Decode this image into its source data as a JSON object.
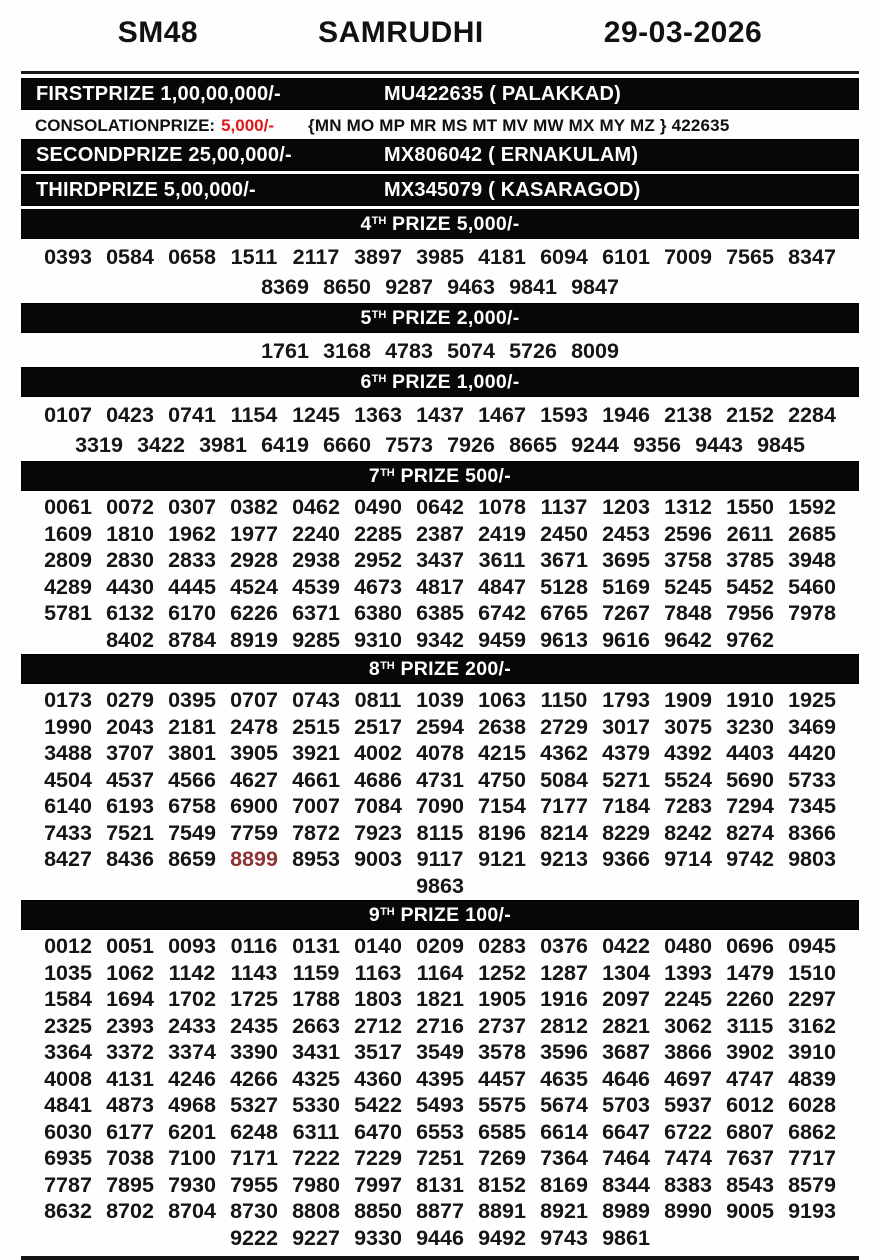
{
  "header": {
    "draw_code": "SM48",
    "lottery_name": "SAMRUDHI",
    "draw_date": "29-03-2026"
  },
  "colors": {
    "bar_background": "#070707",
    "consolation_amount_red": "#e01818",
    "highlighted_number_red": "#8f3333"
  },
  "top_prizes": {
    "first": {
      "label": "FIRSTPRIZE 1,00,00,000/-",
      "winner": "MU422635 ( PALAKKAD)"
    },
    "consolation": {
      "label": "CONSOLATIONPRIZE:",
      "amount": "5,000/-",
      "series": "{MN MO MP MR MS MT MV MW MX MY MZ } 422635"
    },
    "second": {
      "label": "SECONDPRIZE 25,00,000/-",
      "winner": "MX806042 ( ERNAKULAM)"
    },
    "third": {
      "label": "THIRDPRIZE 5,00,000/-",
      "winner": "MX345079 ( KASARAGOD)"
    }
  },
  "sections": [
    {
      "ordinal": "4",
      "sup": "TH",
      "title_rest": "PRIZE 5,000/-",
      "tight": false,
      "rows": [
        [
          "0393",
          "0584",
          "0658",
          "1511",
          "2117",
          "3897",
          "3985",
          "4181",
          "6094",
          "6101",
          "7009",
          "7565",
          "8347"
        ],
        [
          "8369",
          "8650",
          "9287",
          "9463",
          "9841",
          "9847"
        ]
      ]
    },
    {
      "ordinal": "5",
      "sup": "TH",
      "title_rest": "PRIZE 2,000/-",
      "tight": false,
      "rows": [
        [
          "1761",
          "3168",
          "4783",
          "5074",
          "5726",
          "8009"
        ]
      ]
    },
    {
      "ordinal": "6",
      "sup": "TH",
      "title_rest": "PRIZE 1,000/-",
      "tight": false,
      "rows": [
        [
          "0107",
          "0423",
          "0741",
          "1154",
          "1245",
          "1363",
          "1437",
          "1467",
          "1593",
          "1946",
          "2138",
          "2152",
          "2284"
        ],
        [
          "3319",
          "3422",
          "3981",
          "6419",
          "6660",
          "7573",
          "7926",
          "8665",
          "9244",
          "9356",
          "9443",
          "9845"
        ]
      ]
    },
    {
      "ordinal": "7",
      "sup": "TH",
      "title_rest": "PRIZE 500/-",
      "tight": true,
      "rows": [
        [
          "0061",
          "0072",
          "0307",
          "0382",
          "0462",
          "0490",
          "0642",
          "1078",
          "1137",
          "1203",
          "1312",
          "1550",
          "1592"
        ],
        [
          "1609",
          "1810",
          "1962",
          "1977",
          "2240",
          "2285",
          "2387",
          "2419",
          "2450",
          "2453",
          "2596",
          "2611",
          "2685"
        ],
        [
          "2809",
          "2830",
          "2833",
          "2928",
          "2938",
          "2952",
          "3437",
          "3611",
          "3671",
          "3695",
          "3758",
          "3785",
          "3948"
        ],
        [
          "4289",
          "4430",
          "4445",
          "4524",
          "4539",
          "4673",
          "4817",
          "4847",
          "5128",
          "5169",
          "5245",
          "5452",
          "5460"
        ],
        [
          "5781",
          "6132",
          "6170",
          "6226",
          "6371",
          "6380",
          "6385",
          "6742",
          "6765",
          "7267",
          "7848",
          "7956",
          "7978"
        ],
        [
          "8402",
          "8784",
          "8919",
          "9285",
          "9310",
          "9342",
          "9459",
          "9613",
          "9616",
          "9642",
          "9762"
        ]
      ]
    },
    {
      "ordinal": "8",
      "sup": "TH",
      "title_rest": "PRIZE 200/-",
      "tight": true,
      "red_numbers": [
        "8899"
      ],
      "rows": [
        [
          "0173",
          "0279",
          "0395",
          "0707",
          "0743",
          "0811",
          "1039",
          "1063",
          "1150",
          "1793",
          "1909",
          "1910",
          "1925"
        ],
        [
          "1990",
          "2043",
          "2181",
          "2478",
          "2515",
          "2517",
          "2594",
          "2638",
          "2729",
          "3017",
          "3075",
          "3230",
          "3469"
        ],
        [
          "3488",
          "3707",
          "3801",
          "3905",
          "3921",
          "4002",
          "4078",
          "4215",
          "4362",
          "4379",
          "4392",
          "4403",
          "4420"
        ],
        [
          "4504",
          "4537",
          "4566",
          "4627",
          "4661",
          "4686",
          "4731",
          "4750",
          "5084",
          "5271",
          "5524",
          "5690",
          "5733"
        ],
        [
          "6140",
          "6193",
          "6758",
          "6900",
          "7007",
          "7084",
          "7090",
          "7154",
          "7177",
          "7184",
          "7283",
          "7294",
          "7345"
        ],
        [
          "7433",
          "7521",
          "7549",
          "7759",
          "7872",
          "7923",
          "8115",
          "8196",
          "8214",
          "8229",
          "8242",
          "8274",
          "8366"
        ],
        [
          "8427",
          "8436",
          "8659",
          "8899",
          "8953",
          "9003",
          "9117",
          "9121",
          "9213",
          "9366",
          "9714",
          "9742",
          "9803"
        ],
        [
          "9863"
        ]
      ]
    },
    {
      "ordinal": "9",
      "sup": "TH",
      "title_rest": "PRIZE 100/-",
      "tight": true,
      "rows": [
        [
          "0012",
          "0051",
          "0093",
          "0116",
          "0131",
          "0140",
          "0209",
          "0283",
          "0376",
          "0422",
          "0480",
          "0696",
          "0945"
        ],
        [
          "1035",
          "1062",
          "1142",
          "1143",
          "1159",
          "1163",
          "1164",
          "1252",
          "1287",
          "1304",
          "1393",
          "1479",
          "1510"
        ],
        [
          "1584",
          "1694",
          "1702",
          "1725",
          "1788",
          "1803",
          "1821",
          "1905",
          "1916",
          "2097",
          "2245",
          "2260",
          "2297"
        ],
        [
          "2325",
          "2393",
          "2433",
          "2435",
          "2663",
          "2712",
          "2716",
          "2737",
          "2812",
          "2821",
          "3062",
          "3115",
          "3162"
        ],
        [
          "3364",
          "3372",
          "3374",
          "3390",
          "3431",
          "3517",
          "3549",
          "3578",
          "3596",
          "3687",
          "3866",
          "3902",
          "3910"
        ],
        [
          "4008",
          "4131",
          "4246",
          "4266",
          "4325",
          "4360",
          "4395",
          "4457",
          "4635",
          "4646",
          "4697",
          "4747",
          "4839"
        ],
        [
          "4841",
          "4873",
          "4968",
          "5327",
          "5330",
          "5422",
          "5493",
          "5575",
          "5674",
          "5703",
          "5937",
          "6012",
          "6028"
        ],
        [
          "6030",
          "6177",
          "6201",
          "6248",
          "6311",
          "6470",
          "6553",
          "6585",
          "6614",
          "6647",
          "6722",
          "6807",
          "6862"
        ],
        [
          "6935",
          "7038",
          "7100",
          "7171",
          "7222",
          "7229",
          "7251",
          "7269",
          "7364",
          "7464",
          "7474",
          "7637",
          "7717"
        ],
        [
          "7787",
          "7895",
          "7930",
          "7955",
          "7980",
          "7997",
          "8131",
          "8152",
          "8169",
          "8344",
          "8383",
          "8543",
          "8579"
        ],
        [
          "8632",
          "8702",
          "8704",
          "8730",
          "8808",
          "8850",
          "8877",
          "8891",
          "8921",
          "8989",
          "8990",
          "9005",
          "9193"
        ],
        [
          "9222",
          "9227",
          "9330",
          "9446",
          "9492",
          "9743",
          "9861"
        ]
      ]
    }
  ]
}
